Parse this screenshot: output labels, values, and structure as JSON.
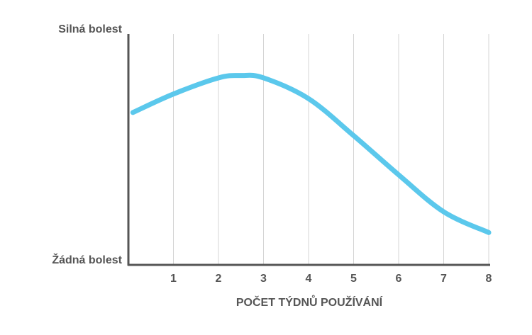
{
  "chart_data": {
    "type": "line",
    "x_label": "POČET TÝDNŮ POUŽÍVÁNÍ",
    "series": [
      {
        "name": "bolest",
        "color": "#5bc8ec",
        "x": [
          0.1,
          1,
          2,
          2.5,
          3,
          4,
          5,
          6,
          7,
          8
        ],
        "values": [
          6.6,
          7.4,
          8.1,
          8.2,
          8.1,
          7.2,
          5.6,
          3.9,
          2.3,
          1.4
        ]
      }
    ],
    "xlim": [
      0,
      8
    ],
    "xticks": [
      1,
      2,
      3,
      4,
      5,
      6,
      7,
      8
    ],
    "ylim": [
      0,
      10
    ],
    "yticks": [
      {
        "value": 0,
        "label": "Žádná bolest"
      },
      {
        "value": 10,
        "label": "Silná bolest"
      }
    ],
    "grid": true
  }
}
